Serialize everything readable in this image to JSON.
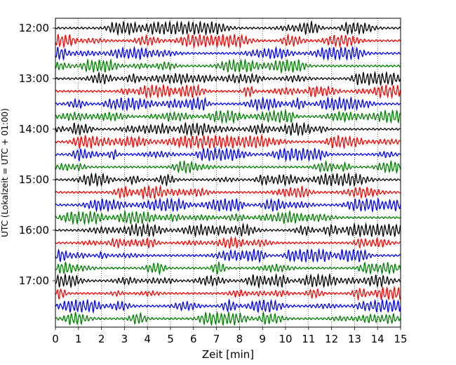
{
  "chart_data": {
    "type": "line",
    "subtype": "helicorder",
    "xlabel": "Zeit  [min]",
    "ylabel": "UTC (Lokalzeit = UTC + 01:00)",
    "xlim": [
      0,
      15
    ],
    "x_ticks": [
      "0",
      "1",
      "2",
      "3",
      "4",
      "5",
      "6",
      "7",
      "8",
      "9",
      "10",
      "11",
      "12",
      "13",
      "14",
      "15"
    ],
    "y_ticks": [
      "12:00",
      "13:00",
      "14:00",
      "15:00",
      "16:00",
      "17:00"
    ],
    "trace_count": 24,
    "trace_interval_minutes": 15,
    "start_time": "12:00",
    "color_cycle": [
      "#000000",
      "#ff0000",
      "#0000ff",
      "#008000"
    ],
    "grid": "vertical dotted at each minute",
    "legend": "none"
  }
}
